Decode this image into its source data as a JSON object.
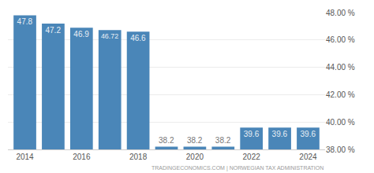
{
  "chart_data": {
    "type": "bar",
    "x": [
      2014,
      2015,
      2016,
      2017,
      2018,
      2019,
      2020,
      2021,
      2022,
      2023,
      2024
    ],
    "values": [
      47.8,
      47.2,
      46.9,
      46.72,
      46.6,
      38.2,
      38.2,
      38.2,
      39.6,
      39.6,
      39.6
    ],
    "color": "#4a86b8",
    "xlim": [
      2013.4,
      2024.6
    ],
    "xticks": [
      2014,
      2016,
      2018,
      2020,
      2022,
      2024
    ],
    "ylim": [
      38,
      48
    ],
    "yticks": [
      {
        "value": 38,
        "label": "38.00 %"
      },
      {
        "value": 40,
        "label": "40.00 %"
      },
      {
        "value": 42,
        "label": "42.00 %"
      },
      {
        "value": 44,
        "label": "44.00 %"
      },
      {
        "value": 46,
        "label": "46.00 %"
      },
      {
        "value": 48,
        "label": "48.00 %"
      }
    ],
    "grid": true,
    "data_labels": true,
    "annotations": [
      "TRADINGECONOMICS.COM | NORWEGIAN TAX ADMINISTRATION"
    ]
  }
}
